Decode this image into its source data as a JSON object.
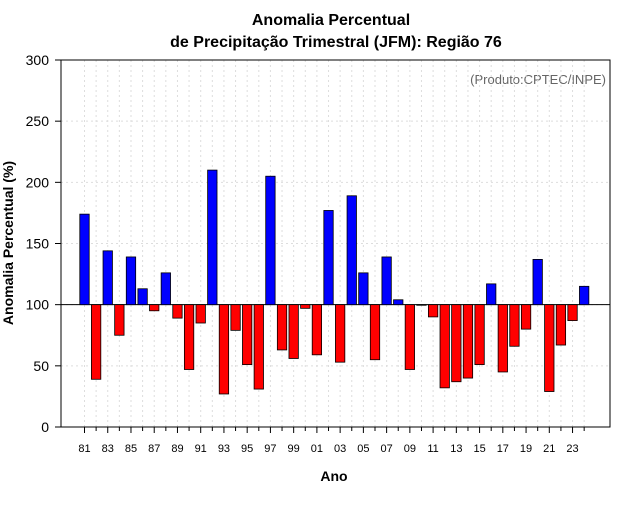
{
  "chart_data": {
    "type": "bar",
    "title_line1": "Anomalia Percentual",
    "title_line2": "de Precipitação Trimestral (JFM): Região 76",
    "credit": "(Produto:CPTEC/INPE)",
    "xlabel": "Ano",
    "ylabel": "Anomalia Percentual (%)",
    "ylim": [
      0,
      300
    ],
    "yticks": [
      0,
      50,
      100,
      150,
      200,
      250,
      300
    ],
    "baseline": 100,
    "grid": true,
    "categories": [
      "81",
      "82",
      "83",
      "84",
      "85",
      "86",
      "87",
      "88",
      "89",
      "90",
      "91",
      "92",
      "93",
      "94",
      "95",
      "96",
      "97",
      "98",
      "99",
      "00",
      "01",
      "02",
      "03",
      "04",
      "05",
      "06",
      "07",
      "08",
      "09",
      "10",
      "11",
      "12",
      "13",
      "14",
      "15",
      "16",
      "17",
      "18",
      "19",
      "20",
      "21",
      "22",
      "23",
      "24"
    ],
    "xtick_labels": [
      "81",
      "83",
      "85",
      "87",
      "89",
      "91",
      "93",
      "95",
      "97",
      "99",
      "01",
      "03",
      "05",
      "07",
      "09",
      "11",
      "13",
      "15",
      "17",
      "19",
      "21",
      "23"
    ],
    "values": [
      174,
      39,
      144,
      75,
      139,
      113,
      95,
      126,
      89,
      47,
      85,
      210,
      27,
      79,
      51,
      31,
      205,
      63,
      56,
      97,
      59,
      177,
      53,
      189,
      126,
      55,
      139,
      104,
      47,
      100,
      90,
      32,
      37,
      40,
      51,
      117,
      45,
      66,
      80,
      137,
      29,
      67,
      87,
      115
    ],
    "colors": {
      "above": "#0000FF",
      "below": "#FF0000",
      "grid": "#DDDDDD",
      "frame": "#000000"
    }
  }
}
